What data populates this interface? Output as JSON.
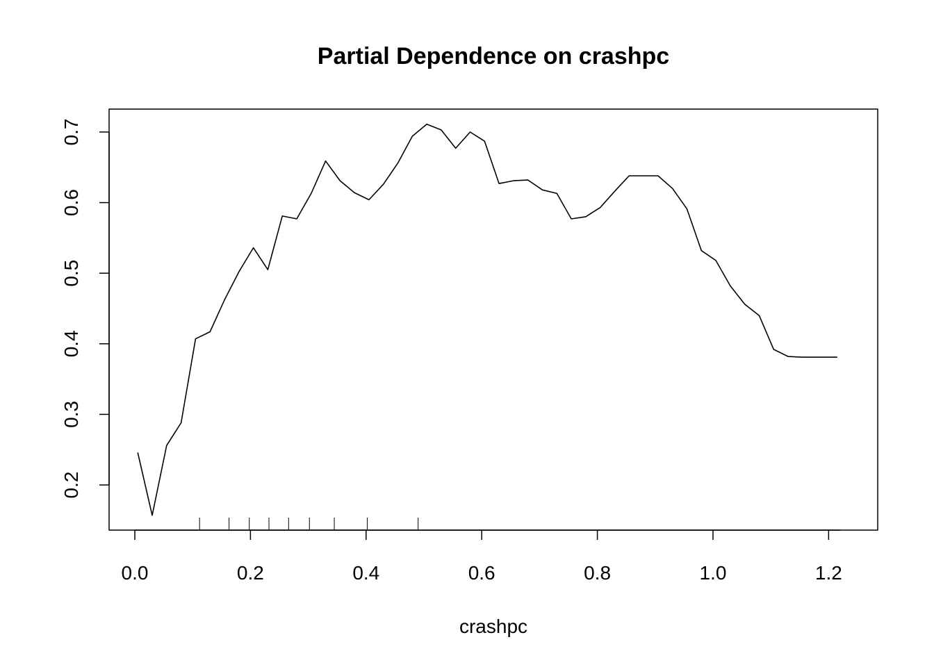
{
  "chart_data": {
    "type": "line",
    "title": "Partial Dependence on crashpc",
    "xlabel": "crashpc",
    "ylabel": "",
    "xlim": [
      0.0,
      1.22
    ],
    "ylim": [
      0.2,
      0.7
    ],
    "xticks": [
      "0.0",
      "0.2",
      "0.4",
      "0.6",
      "0.8",
      "1.0",
      "1.2"
    ],
    "yticks": [
      "0.2",
      "0.3",
      "0.4",
      "0.5",
      "0.6",
      "0.7"
    ],
    "grid": false,
    "series": [
      {
        "x": [
          0.005,
          0.03,
          0.055,
          0.08,
          0.105,
          0.13,
          0.155,
          0.18,
          0.205,
          0.23,
          0.255,
          0.28,
          0.305,
          0.33,
          0.355,
          0.38,
          0.405,
          0.43,
          0.455,
          0.48,
          0.505,
          0.53,
          0.555,
          0.58,
          0.605,
          0.63,
          0.655,
          0.68,
          0.705,
          0.73,
          0.755,
          0.78,
          0.805,
          0.83,
          0.855,
          0.88,
          0.905,
          0.93,
          0.955,
          0.98,
          1.005,
          1.03,
          1.055,
          1.08,
          1.105,
          1.13,
          1.155,
          1.18,
          1.205,
          1.215
        ],
        "y": [
          0.246,
          0.157,
          0.256,
          0.288,
          0.407,
          0.417,
          0.462,
          0.502,
          0.536,
          0.505,
          0.581,
          0.577,
          0.613,
          0.659,
          0.631,
          0.614,
          0.604,
          0.626,
          0.656,
          0.694,
          0.711,
          0.703,
          0.677,
          0.7,
          0.687,
          0.627,
          0.631,
          0.632,
          0.618,
          0.613,
          0.577,
          0.58,
          0.593,
          0.616,
          0.638,
          0.638,
          0.638,
          0.62,
          0.591,
          0.532,
          0.518,
          0.482,
          0.456,
          0.44,
          0.392,
          0.382,
          0.381,
          0.381,
          0.381,
          0.381
        ]
      }
    ],
    "rug": [
      0.112,
      0.163,
      0.198,
      0.232,
      0.266,
      0.302,
      0.345,
      0.402,
      0.49
    ]
  }
}
